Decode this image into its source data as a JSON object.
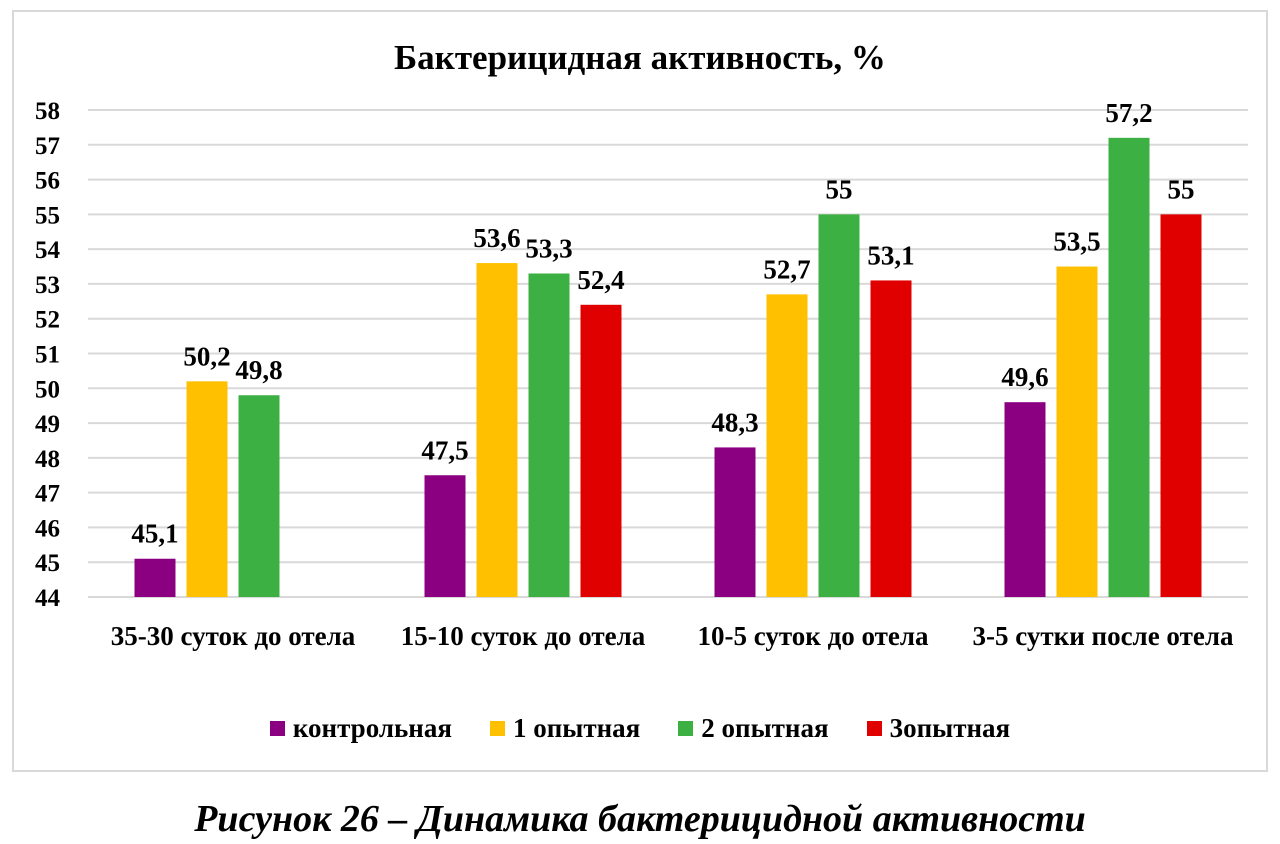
{
  "chart_data": {
    "type": "bar",
    "title": "Бактерицидная активность, %",
    "categories": [
      "35-30 суток до отела",
      "15-10 суток до отела",
      "10-5 суток до отела",
      "3-5 сутки после отела"
    ],
    "series": [
      {
        "name": "контрольная",
        "color": "#8b0080",
        "values": [
          45.1,
          47.5,
          48.3,
          49.6
        ],
        "labels": [
          "45,1",
          "47,5",
          "48,3",
          "49,6"
        ]
      },
      {
        "name": "1 опытная",
        "color": "#ffc000",
        "values": [
          50.2,
          53.6,
          52.7,
          53.5
        ],
        "labels": [
          "50,2",
          "53,6",
          "52,7",
          "53,5"
        ]
      },
      {
        "name": "2 опытная",
        "color": "#3cb043",
        "values": [
          49.8,
          53.3,
          55,
          57.2
        ],
        "labels": [
          "49,8",
          "53,3",
          "55",
          "57,2"
        ]
      },
      {
        "name": "3опытная",
        "color": "#e00000",
        "values": [
          null,
          52.4,
          53.1,
          55
        ],
        "labels": [
          "",
          "52,4",
          "53,1",
          "55"
        ]
      }
    ],
    "ylim": [
      44,
      58
    ],
    "yticks": [
      "44",
      "45",
      "46",
      "47",
      "48",
      "49",
      "50",
      "51",
      "52",
      "53",
      "54",
      "55",
      "56",
      "57",
      "58"
    ],
    "grid": true,
    "legend_position": "bottom"
  },
  "caption": "Рисунок 26 – Динамика бактерицидной активности"
}
